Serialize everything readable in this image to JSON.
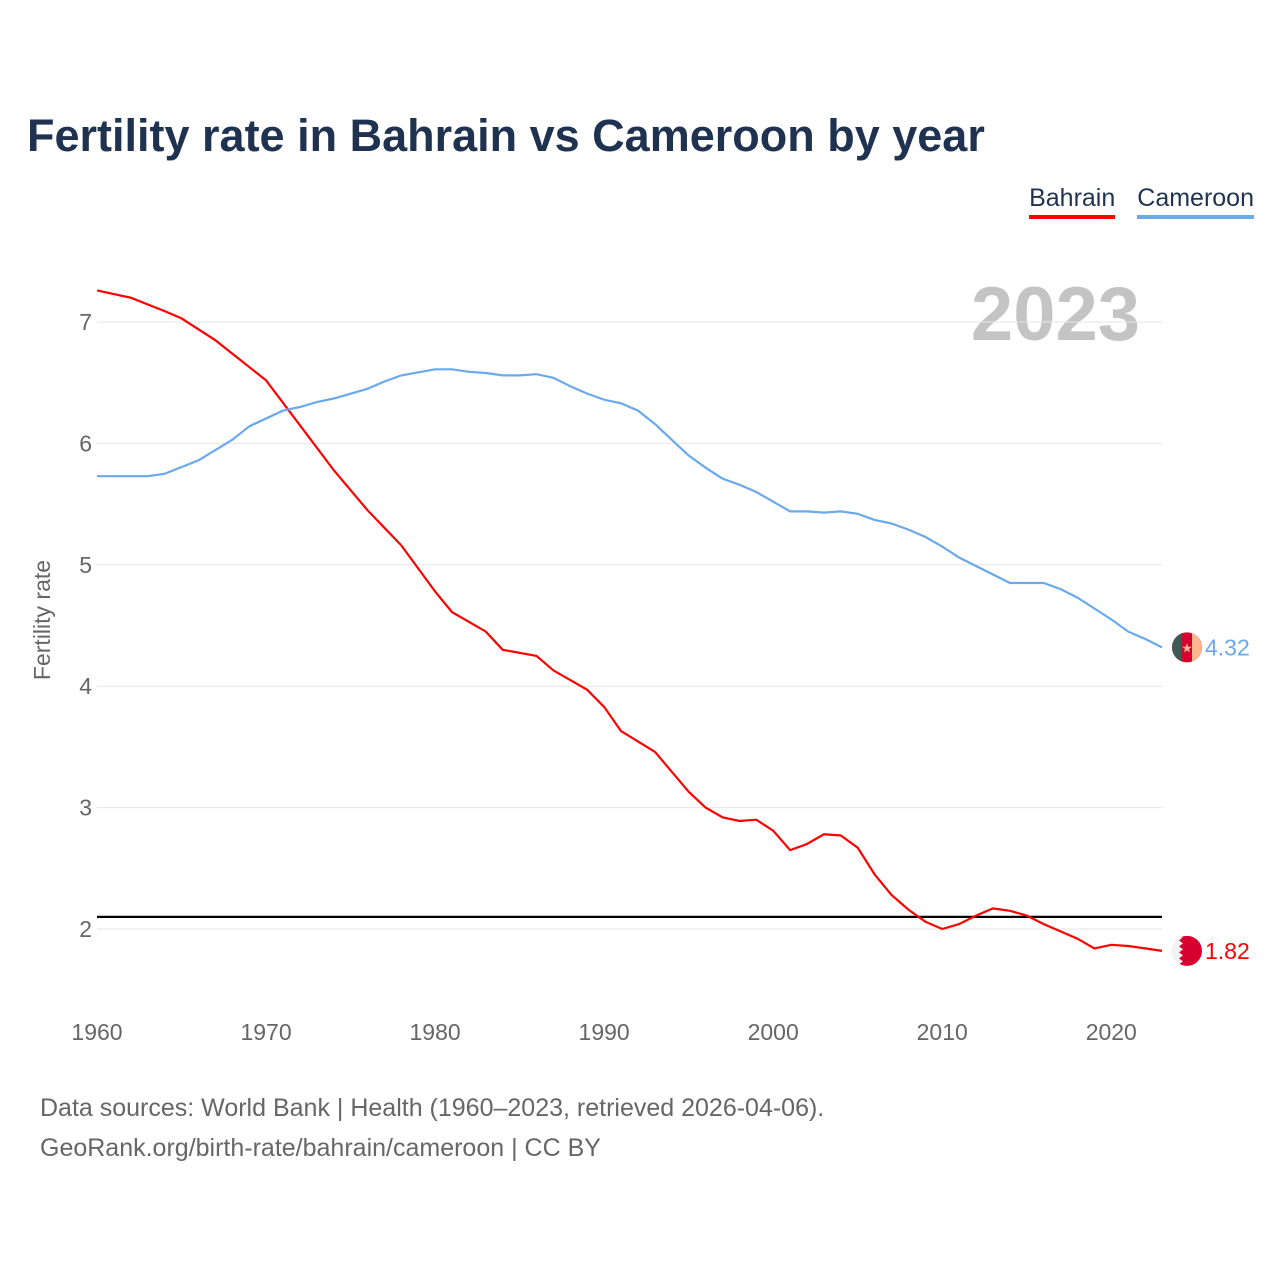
{
  "chart_data": {
    "type": "line",
    "title": "Fertility rate in Bahrain vs Cameroon by year",
    "xlabel": "",
    "ylabel": "Fertility rate",
    "xlim": [
      1960,
      2023
    ],
    "ylim": [
      1.5,
      7.3
    ],
    "x_ticks": [
      "1960",
      "1970",
      "1980",
      "1990",
      "2000",
      "2010",
      "2020"
    ],
    "y_ticks": [
      "2",
      "3",
      "4",
      "5",
      "6",
      "7"
    ],
    "grid": true,
    "legend_position": "top-right",
    "year_label": "2023",
    "reference_line": 2.1,
    "series": [
      {
        "name": "Bahrain",
        "color": "#ff0000",
        "end_label": "1.82",
        "x": [
          1960,
          1962,
          1964,
          1965,
          1967,
          1970,
          1972,
          1974,
          1976,
          1978,
          1980,
          1981,
          1983,
          1984,
          1986,
          1987,
          1989,
          1990,
          1991,
          1993,
          1995,
          1996,
          1997,
          1998,
          1999,
          2000,
          2001,
          2002,
          2003,
          2004,
          2005,
          2006,
          2007,
          2008,
          2009,
          2010,
          2011,
          2012,
          2013,
          2014,
          2015,
          2016,
          2017,
          2018,
          2019,
          2020,
          2021,
          2022,
          2023
        ],
        "values": [
          7.26,
          7.2,
          7.09,
          7.03,
          6.85,
          6.52,
          6.15,
          5.78,
          5.45,
          5.16,
          4.78,
          4.61,
          4.45,
          4.3,
          4.25,
          4.13,
          3.97,
          3.83,
          3.63,
          3.46,
          3.13,
          3.0,
          2.92,
          2.89,
          2.9,
          2.81,
          2.65,
          2.7,
          2.78,
          2.77,
          2.67,
          2.45,
          2.28,
          2.16,
          2.06,
          2.0,
          2.04,
          2.11,
          2.17,
          2.15,
          2.11,
          2.04,
          1.98,
          1.92,
          1.84,
          1.87,
          1.86,
          1.84,
          1.82
        ]
      },
      {
        "name": "Cameroon",
        "color": "#6aa9ec",
        "end_label": "4.32",
        "x": [
          1960,
          1963,
          1964,
          1966,
          1968,
          1969,
          1971,
          1972,
          1973,
          1974,
          1976,
          1977,
          1978,
          1980,
          1981,
          1982,
          1983,
          1984,
          1985,
          1986,
          1987,
          1988,
          1989,
          1990,
          1991,
          1992,
          1993,
          1994,
          1995,
          1996,
          1997,
          1998,
          1999,
          2000,
          2001,
          2002,
          2003,
          2004,
          2005,
          2006,
          2007,
          2008,
          2009,
          2010,
          2011,
          2012,
          2013,
          2014,
          2016,
          2017,
          2018,
          2019,
          2020,
          2021,
          2022,
          2023
        ],
        "values": [
          5.73,
          5.73,
          5.75,
          5.86,
          6.03,
          6.14,
          6.27,
          6.3,
          6.34,
          6.37,
          6.45,
          6.51,
          6.56,
          6.61,
          6.61,
          6.59,
          6.58,
          6.56,
          6.56,
          6.57,
          6.54,
          6.47,
          6.41,
          6.36,
          6.33,
          6.27,
          6.16,
          6.03,
          5.9,
          5.8,
          5.71,
          5.66,
          5.6,
          5.52,
          5.44,
          5.44,
          5.43,
          5.44,
          5.42,
          5.37,
          5.34,
          5.29,
          5.23,
          5.15,
          5.06,
          4.99,
          4.92,
          4.85,
          4.85,
          4.8,
          4.73,
          4.64,
          4.55,
          4.45,
          4.39,
          4.32
        ]
      }
    ]
  },
  "source": {
    "line1": "Data sources: World Bank | Health (1960–2023, retrieved 2026-04-06).",
    "line2": "GeoRank.org/birth-rate/bahrain/cameroon | CC BY"
  }
}
